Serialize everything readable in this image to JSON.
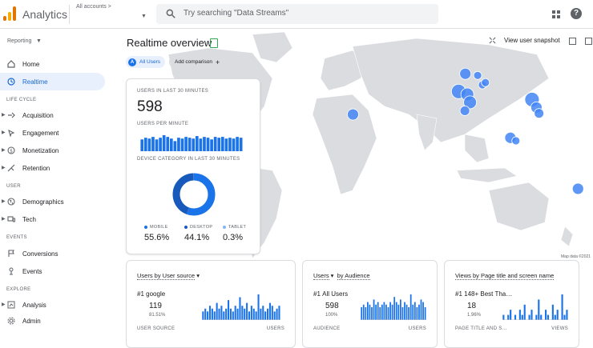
{
  "header": {
    "app_title": "Analytics",
    "account_label": "All accounts >",
    "search_placeholder": "Try searching \"Data Streams\""
  },
  "sidebar": {
    "reporting": "Reporting",
    "items": [
      {
        "label": "Home"
      },
      {
        "label": "Realtime"
      }
    ],
    "sections": [
      {
        "label": "LIFE CYCLE",
        "items": [
          {
            "label": "Acquisition"
          },
          {
            "label": "Engagement"
          },
          {
            "label": "Monetization"
          },
          {
            "label": "Retention"
          }
        ]
      },
      {
        "label": "USER",
        "items": [
          {
            "label": "Demographics"
          },
          {
            "label": "Tech"
          }
        ]
      },
      {
        "label": "EVENTS",
        "items": [
          {
            "label": "Conversions"
          },
          {
            "label": "Events"
          }
        ]
      },
      {
        "label": "EXPLORE",
        "items": [
          {
            "label": "Analysis"
          }
        ]
      }
    ],
    "admin": "Admin"
  },
  "main": {
    "title": "Realtime overview",
    "chip_all_users": "All Users",
    "chip_badge": "A",
    "add_comparison": "Add comparison",
    "view_snapshot": "View user snapshot",
    "map_credit": "Map data ©2021"
  },
  "summary": {
    "users_label": "USERS IN LAST 30 MINUTES",
    "users_value": "598",
    "per_minute_label": "USERS PER MINUTE",
    "per_minute_values": [
      14,
      16,
      15,
      17,
      14,
      16,
      19,
      17,
      15,
      12,
      16,
      15,
      17,
      16,
      15,
      18,
      15,
      17,
      16,
      14,
      17,
      16,
      17,
      15,
      16,
      15,
      17,
      16
    ],
    "device_label": "DEVICE CATEGORY IN LAST 30 MINUTES",
    "devices": [
      {
        "label": "MOBILE",
        "value": "55.6%",
        "share": 0.556,
        "color": "#1a73e8"
      },
      {
        "label": "DESKTOP",
        "value": "44.1%",
        "share": 0.441,
        "color": "#185abc"
      },
      {
        "label": "TABLET",
        "value": "0.3%",
        "share": 0.003,
        "color": "#8ab4f8"
      }
    ]
  },
  "cards": [
    {
      "title_a": "Users by User source",
      "title_b": "",
      "rank": "#1",
      "rank_label": "google",
      "value": "119",
      "pct": "81.51%",
      "foot_left": "USER SOURCE",
      "foot_right": "USERS",
      "bars": [
        3,
        4,
        3,
        5,
        4,
        3,
        6,
        4,
        5,
        3,
        4,
        7,
        4,
        3,
        5,
        4,
        8,
        5,
        4,
        6,
        3,
        5,
        4,
        3,
        9,
        4,
        5,
        3,
        4,
        6,
        5,
        3,
        4,
        5
      ]
    },
    {
      "title_a": "Users",
      "title_b": "by Audience",
      "rank": "#1",
      "rank_label": "All Users",
      "value": "598",
      "pct": "100%",
      "foot_left": "AUDIENCE",
      "foot_right": "USERS",
      "bars": [
        5,
        6,
        5,
        7,
        6,
        5,
        8,
        6,
        7,
        5,
        6,
        7,
        6,
        5,
        7,
        6,
        9,
        7,
        6,
        8,
        5,
        7,
        6,
        5,
        10,
        6,
        7,
        5,
        6,
        8,
        7,
        5
      ]
    },
    {
      "title_a": "Views by Page title and screen name",
      "title_b": "",
      "rank": "#1",
      "rank_label": "148+ Best Tha…",
      "value": "18",
      "pct": "1.96%",
      "foot_left": "PAGE TITLE AND S…",
      "foot_right": "VIEWS",
      "bars": [
        1,
        0,
        1,
        2,
        0,
        1,
        0,
        2,
        1,
        3,
        0,
        1,
        2,
        0,
        1,
        4,
        1,
        0,
        2,
        1,
        0,
        3,
        1,
        2,
        0,
        5,
        1,
        2
      ]
    }
  ],
  "map_points": [
    {
      "lon": 72.8,
      "lat": 19.0,
      "r": 9
    },
    {
      "lon": 77.2,
      "lat": 28.6,
      "r": 7
    },
    {
      "lon": 78.5,
      "lat": 17.4,
      "r": 8
    },
    {
      "lon": 80.3,
      "lat": 13.1,
      "r": 8
    },
    {
      "lon": 76.9,
      "lat": 8.5,
      "r": 6
    },
    {
      "lon": 88.4,
      "lat": 22.6,
      "r": 5
    },
    {
      "lon": 90.4,
      "lat": 23.8,
      "r": 5
    },
    {
      "lon": 85.3,
      "lat": 27.7,
      "r": 5
    },
    {
      "lon": 121.0,
      "lat": 14.6,
      "r": 9
    },
    {
      "lon": 123.9,
      "lat": 10.3,
      "r": 7
    },
    {
      "lon": 125.6,
      "lat": 7.1,
      "r": 6
    },
    {
      "lon": 106.8,
      "lat": -6.2,
      "r": 7
    },
    {
      "lon": 110.4,
      "lat": -7.8,
      "r": 5
    },
    {
      "lon": 151.2,
      "lat": -33.9,
      "r": 7
    },
    {
      "lon": 3.4,
      "lat": 6.5,
      "r": 7
    }
  ]
}
